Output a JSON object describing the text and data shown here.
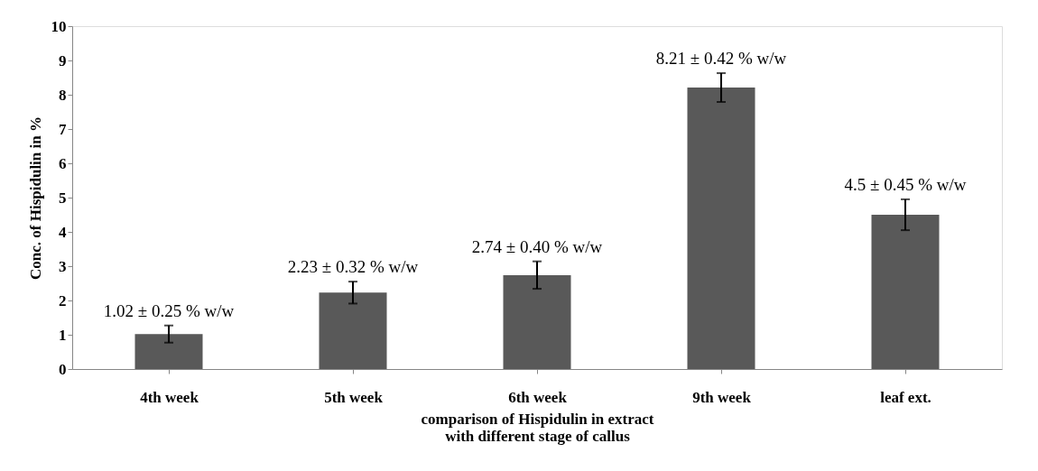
{
  "chart_data": {
    "type": "bar",
    "ylabel": "Conc. of Hispidulin in %",
    "xlabel": "comparison of Hispidulin in extract\nwith different stage of callus",
    "categories": [
      "4th week",
      "5th week",
      "6th week",
      "9th week",
      "leaf ext."
    ],
    "values": [
      1.02,
      2.23,
      2.74,
      8.21,
      4.5
    ],
    "errors": [
      0.25,
      0.32,
      0.4,
      0.42,
      0.45
    ],
    "value_labels": [
      "1.02 ± 0.25 % w/w",
      "2.23 ± 0.32 % w/w",
      "2.74 ± 0.40 % w/w",
      "8.21 ± 0.42 % w/w",
      "4.5 ± 0.45 % w/w"
    ],
    "color": "#595959",
    "ylim": [
      0,
      10
    ],
    "yticks": [
      0,
      1,
      2,
      3,
      4,
      5,
      6,
      7,
      8,
      9,
      10
    ],
    "grid": false
  }
}
